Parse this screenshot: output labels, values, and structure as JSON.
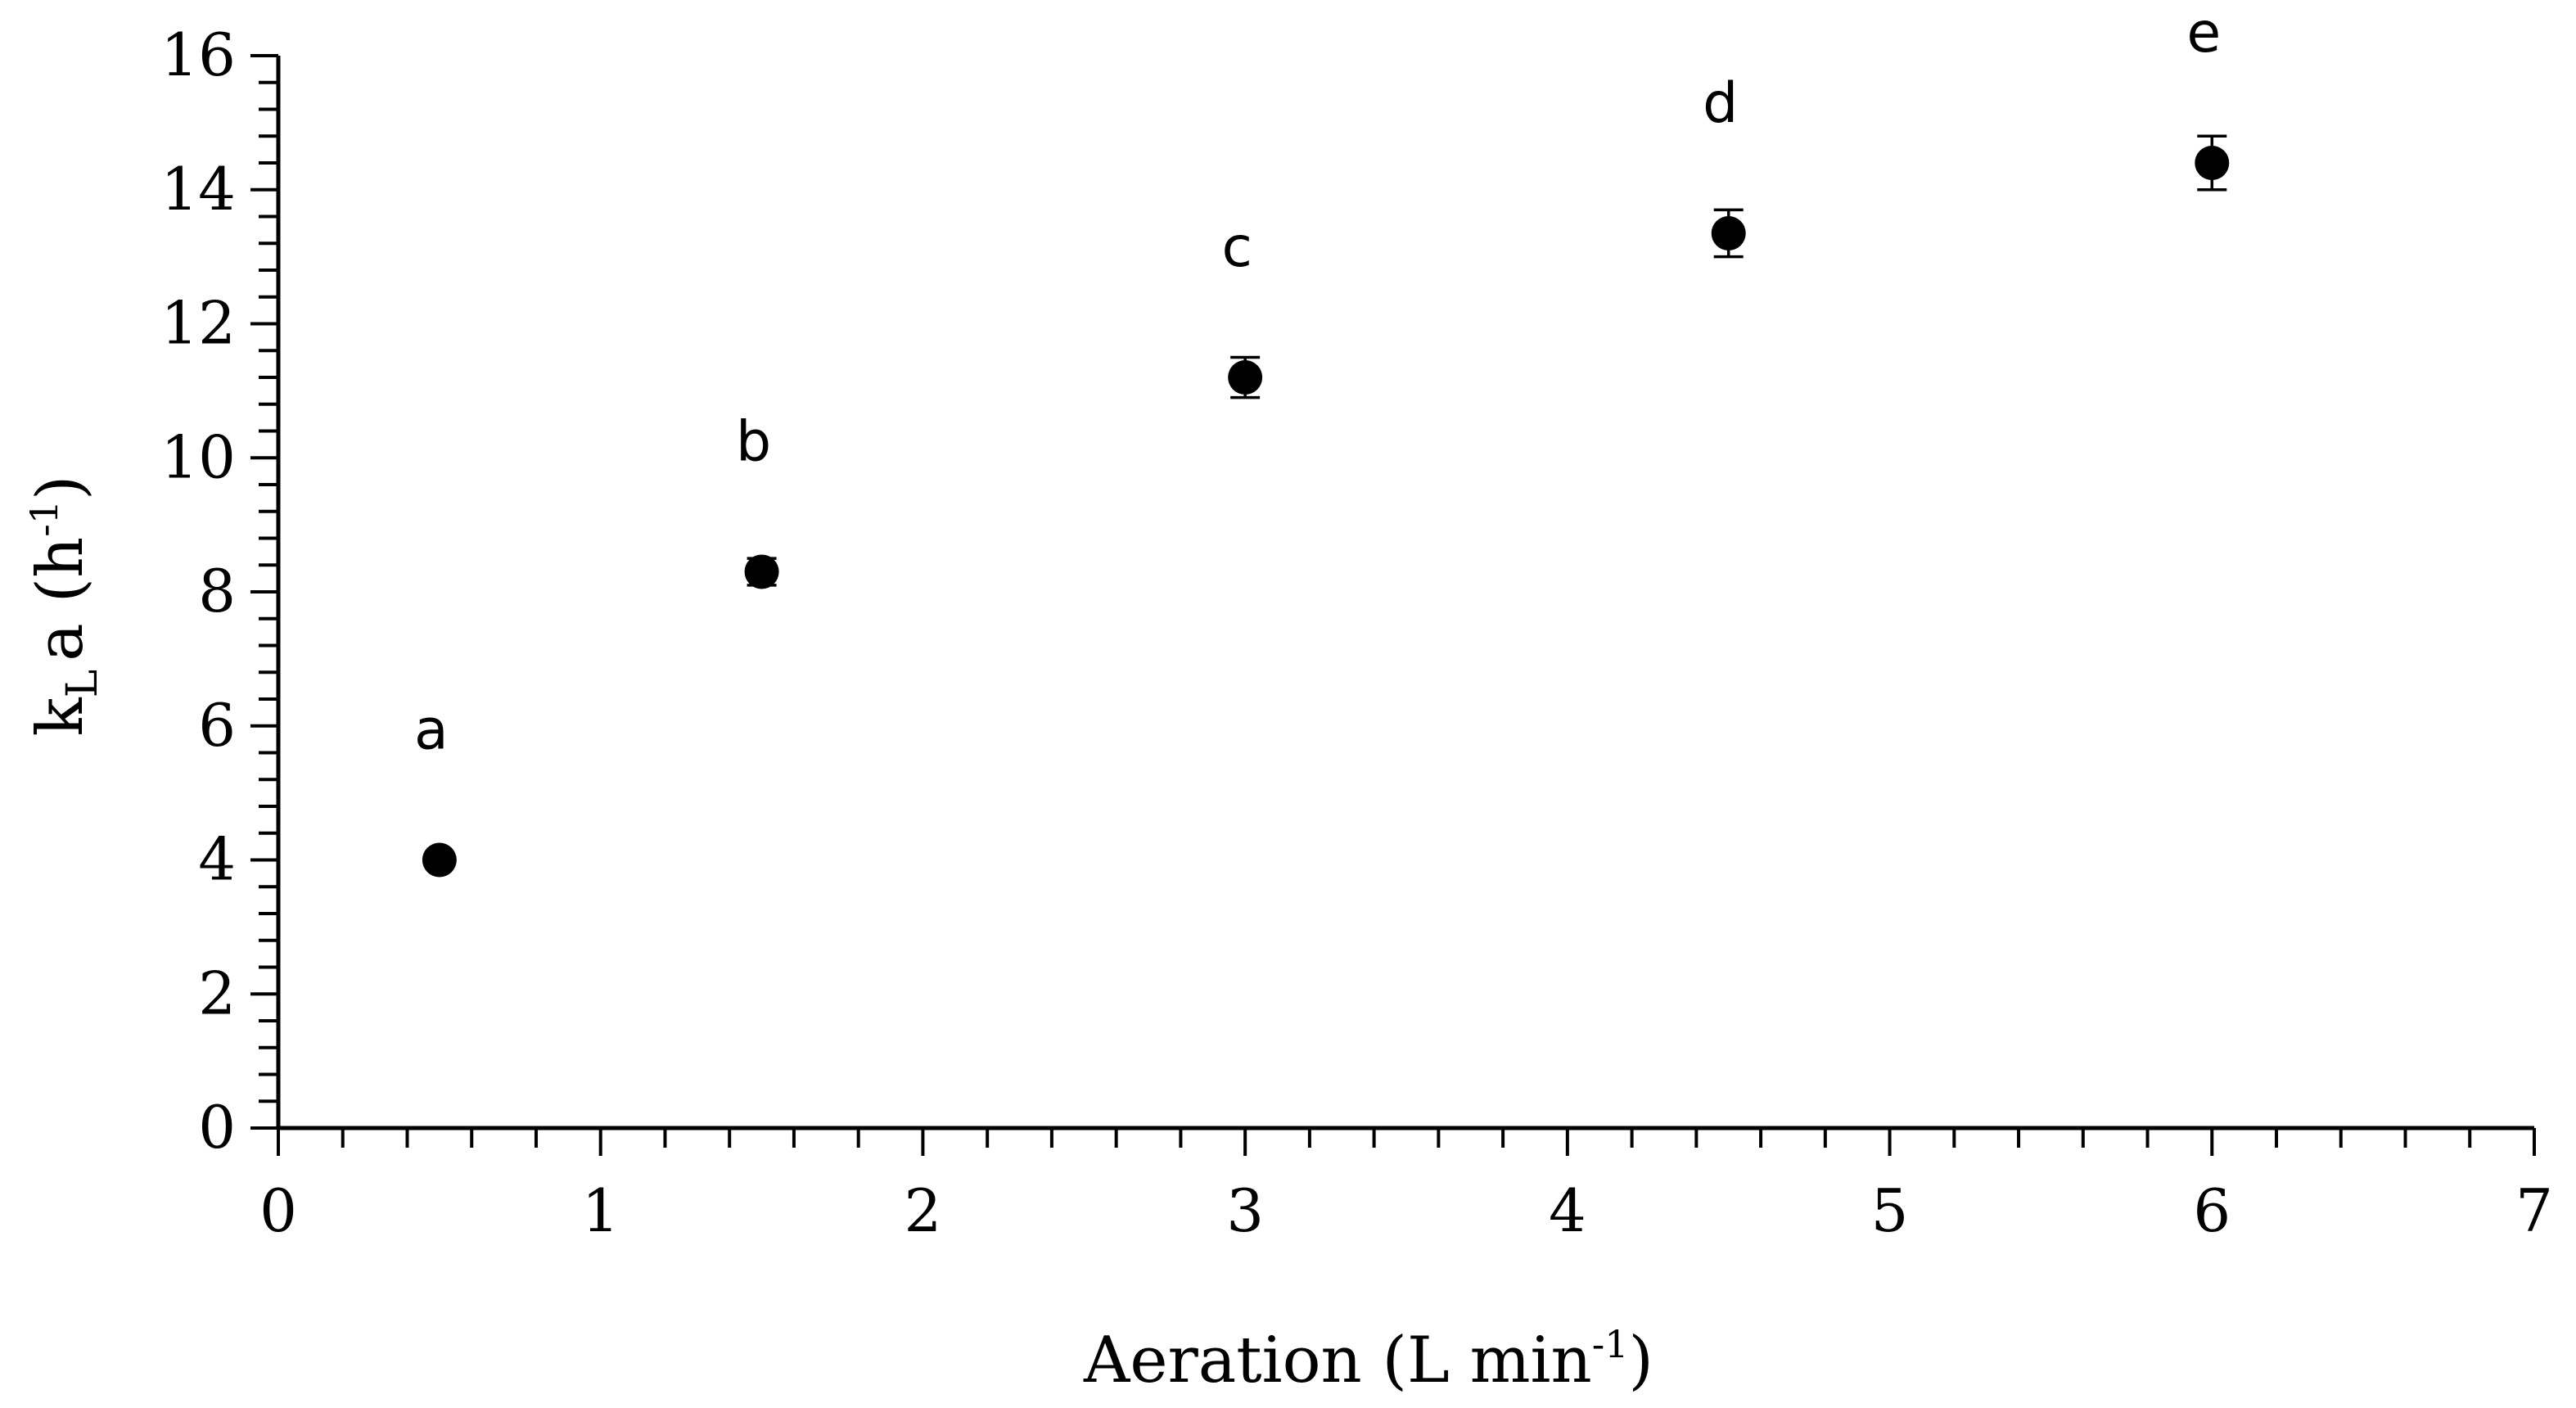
{
  "chart_data": {
    "type": "scatter",
    "title": "",
    "xlabel": {
      "base": "Aeration (L min",
      "sup": "-1",
      "end": ")"
    },
    "ylabel": {
      "k": "k",
      "sub": "L",
      "rest": "a (h",
      "sup": "-1",
      "end": ")"
    },
    "xlim": [
      0,
      7
    ],
    "ylim": [
      0,
      16
    ],
    "x_ticks": [
      0,
      1,
      2,
      3,
      4,
      5,
      6,
      7
    ],
    "y_ticks": [
      0,
      2,
      4,
      6,
      8,
      10,
      12,
      14,
      16
    ],
    "x_minor_step": 0.2,
    "y_minor_step": 0.4,
    "grid": false,
    "legend": "none",
    "marker_color": "#000000",
    "points": [
      {
        "x": 0.5,
        "y": 4.0,
        "err": 0.0,
        "label": "a"
      },
      {
        "x": 1.5,
        "y": 8.3,
        "err": 0.2,
        "label": "b"
      },
      {
        "x": 3.0,
        "y": 11.2,
        "err": 0.3,
        "label": "c"
      },
      {
        "x": 4.5,
        "y": 13.35,
        "err": 0.35,
        "label": "d"
      },
      {
        "x": 6.0,
        "y": 14.4,
        "err": 0.4,
        "label": "e"
      }
    ]
  }
}
